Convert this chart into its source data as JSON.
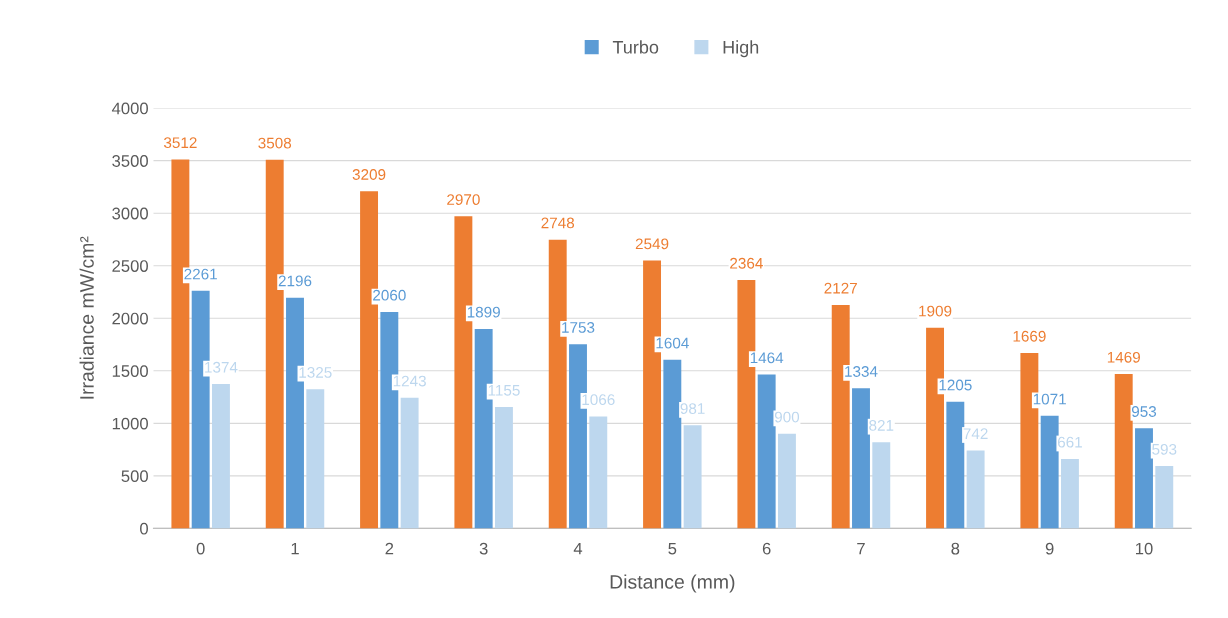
{
  "chart_data": {
    "type": "bar",
    "xlabel": "Distance (mm)",
    "ylabel": "Irradiance mW/cm²",
    "categories": [
      "0",
      "1",
      "2",
      "3",
      "4",
      "5",
      "6",
      "7",
      "8",
      "9",
      "10"
    ],
    "series": [
      {
        "color": "#ed7d31",
        "values": [
          3512,
          3508,
          3209,
          2970,
          2748,
          2549,
          2364,
          2127,
          1909,
          1669,
          1469
        ]
      },
      {
        "name": "Turbo",
        "color": "#5b9bd5",
        "values": [
          2261,
          2196,
          2060,
          1899,
          1753,
          1604,
          1464,
          1334,
          1205,
          1071,
          953
        ]
      },
      {
        "name": "High",
        "color": "#bdd7ee",
        "values": [
          1374,
          1325,
          1243,
          1155,
          1066,
          981,
          900,
          821,
          742,
          661,
          593
        ]
      }
    ],
    "ylim": [
      0,
      4000
    ],
    "yticks": [
      0,
      500,
      1000,
      1500,
      2000,
      2500,
      3000,
      3500,
      4000
    ],
    "grid": "y",
    "legend": "top",
    "data_labels": true
  }
}
